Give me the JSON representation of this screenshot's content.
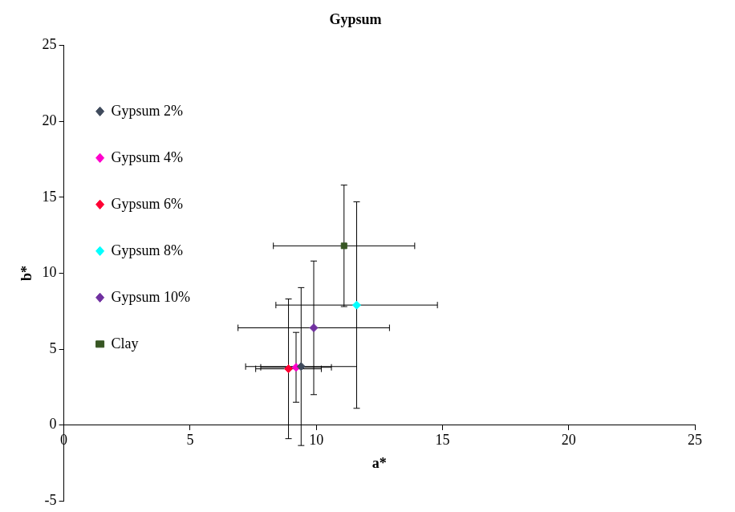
{
  "chart_data": {
    "type": "scatter",
    "title": "Gypsum",
    "x_label": "a*",
    "y_label": "b*",
    "xlim": [
      0,
      25
    ],
    "xticks": [
      0,
      5,
      10,
      15,
      20,
      25
    ],
    "ylim": [
      -5,
      25
    ],
    "yticks": [
      -5,
      0,
      5,
      10,
      15,
      20,
      25
    ],
    "grid": false,
    "legend": "top",
    "series": [
      {
        "name": "Gypsum 2%",
        "color": "#3f4a5c",
        "marker": "diamond",
        "x": [
          9.4
        ],
        "values": [
          3.85
        ],
        "x_error": [
          2.2
        ],
        "y_error": [
          5.2
        ]
      },
      {
        "name": "Gypsum 4%",
        "color": "#ff00cc",
        "marker": "diamond",
        "x": [
          9.2
        ],
        "values": [
          3.8
        ],
        "x_error": [
          1.4
        ],
        "y_error": [
          2.3
        ]
      },
      {
        "name": "Gypsum 6%",
        "color": "#ff0033",
        "marker": "diamond",
        "x": [
          8.9
        ],
        "values": [
          3.7
        ],
        "x_error": [
          1.3
        ],
        "y_error": [
          4.6
        ]
      },
      {
        "name": "Gypsum 8%",
        "color": "#00ffff",
        "marker": "diamond",
        "x": [
          11.6
        ],
        "values": [
          7.9
        ],
        "x_error": [
          3.2
        ],
        "y_error": [
          6.8
        ]
      },
      {
        "name": "Gypsum 10%",
        "color": "#7030a0",
        "marker": "diamond",
        "x": [
          9.9
        ],
        "values": [
          6.4
        ],
        "x_error": [
          3.0
        ],
        "y_error": [
          4.4
        ]
      },
      {
        "name": "Clay",
        "color": "#375623",
        "marker": "square",
        "x": [
          11.1
        ],
        "values": [
          11.8
        ],
        "x_error": [
          2.8
        ],
        "y_error": [
          4.0
        ]
      }
    ]
  }
}
